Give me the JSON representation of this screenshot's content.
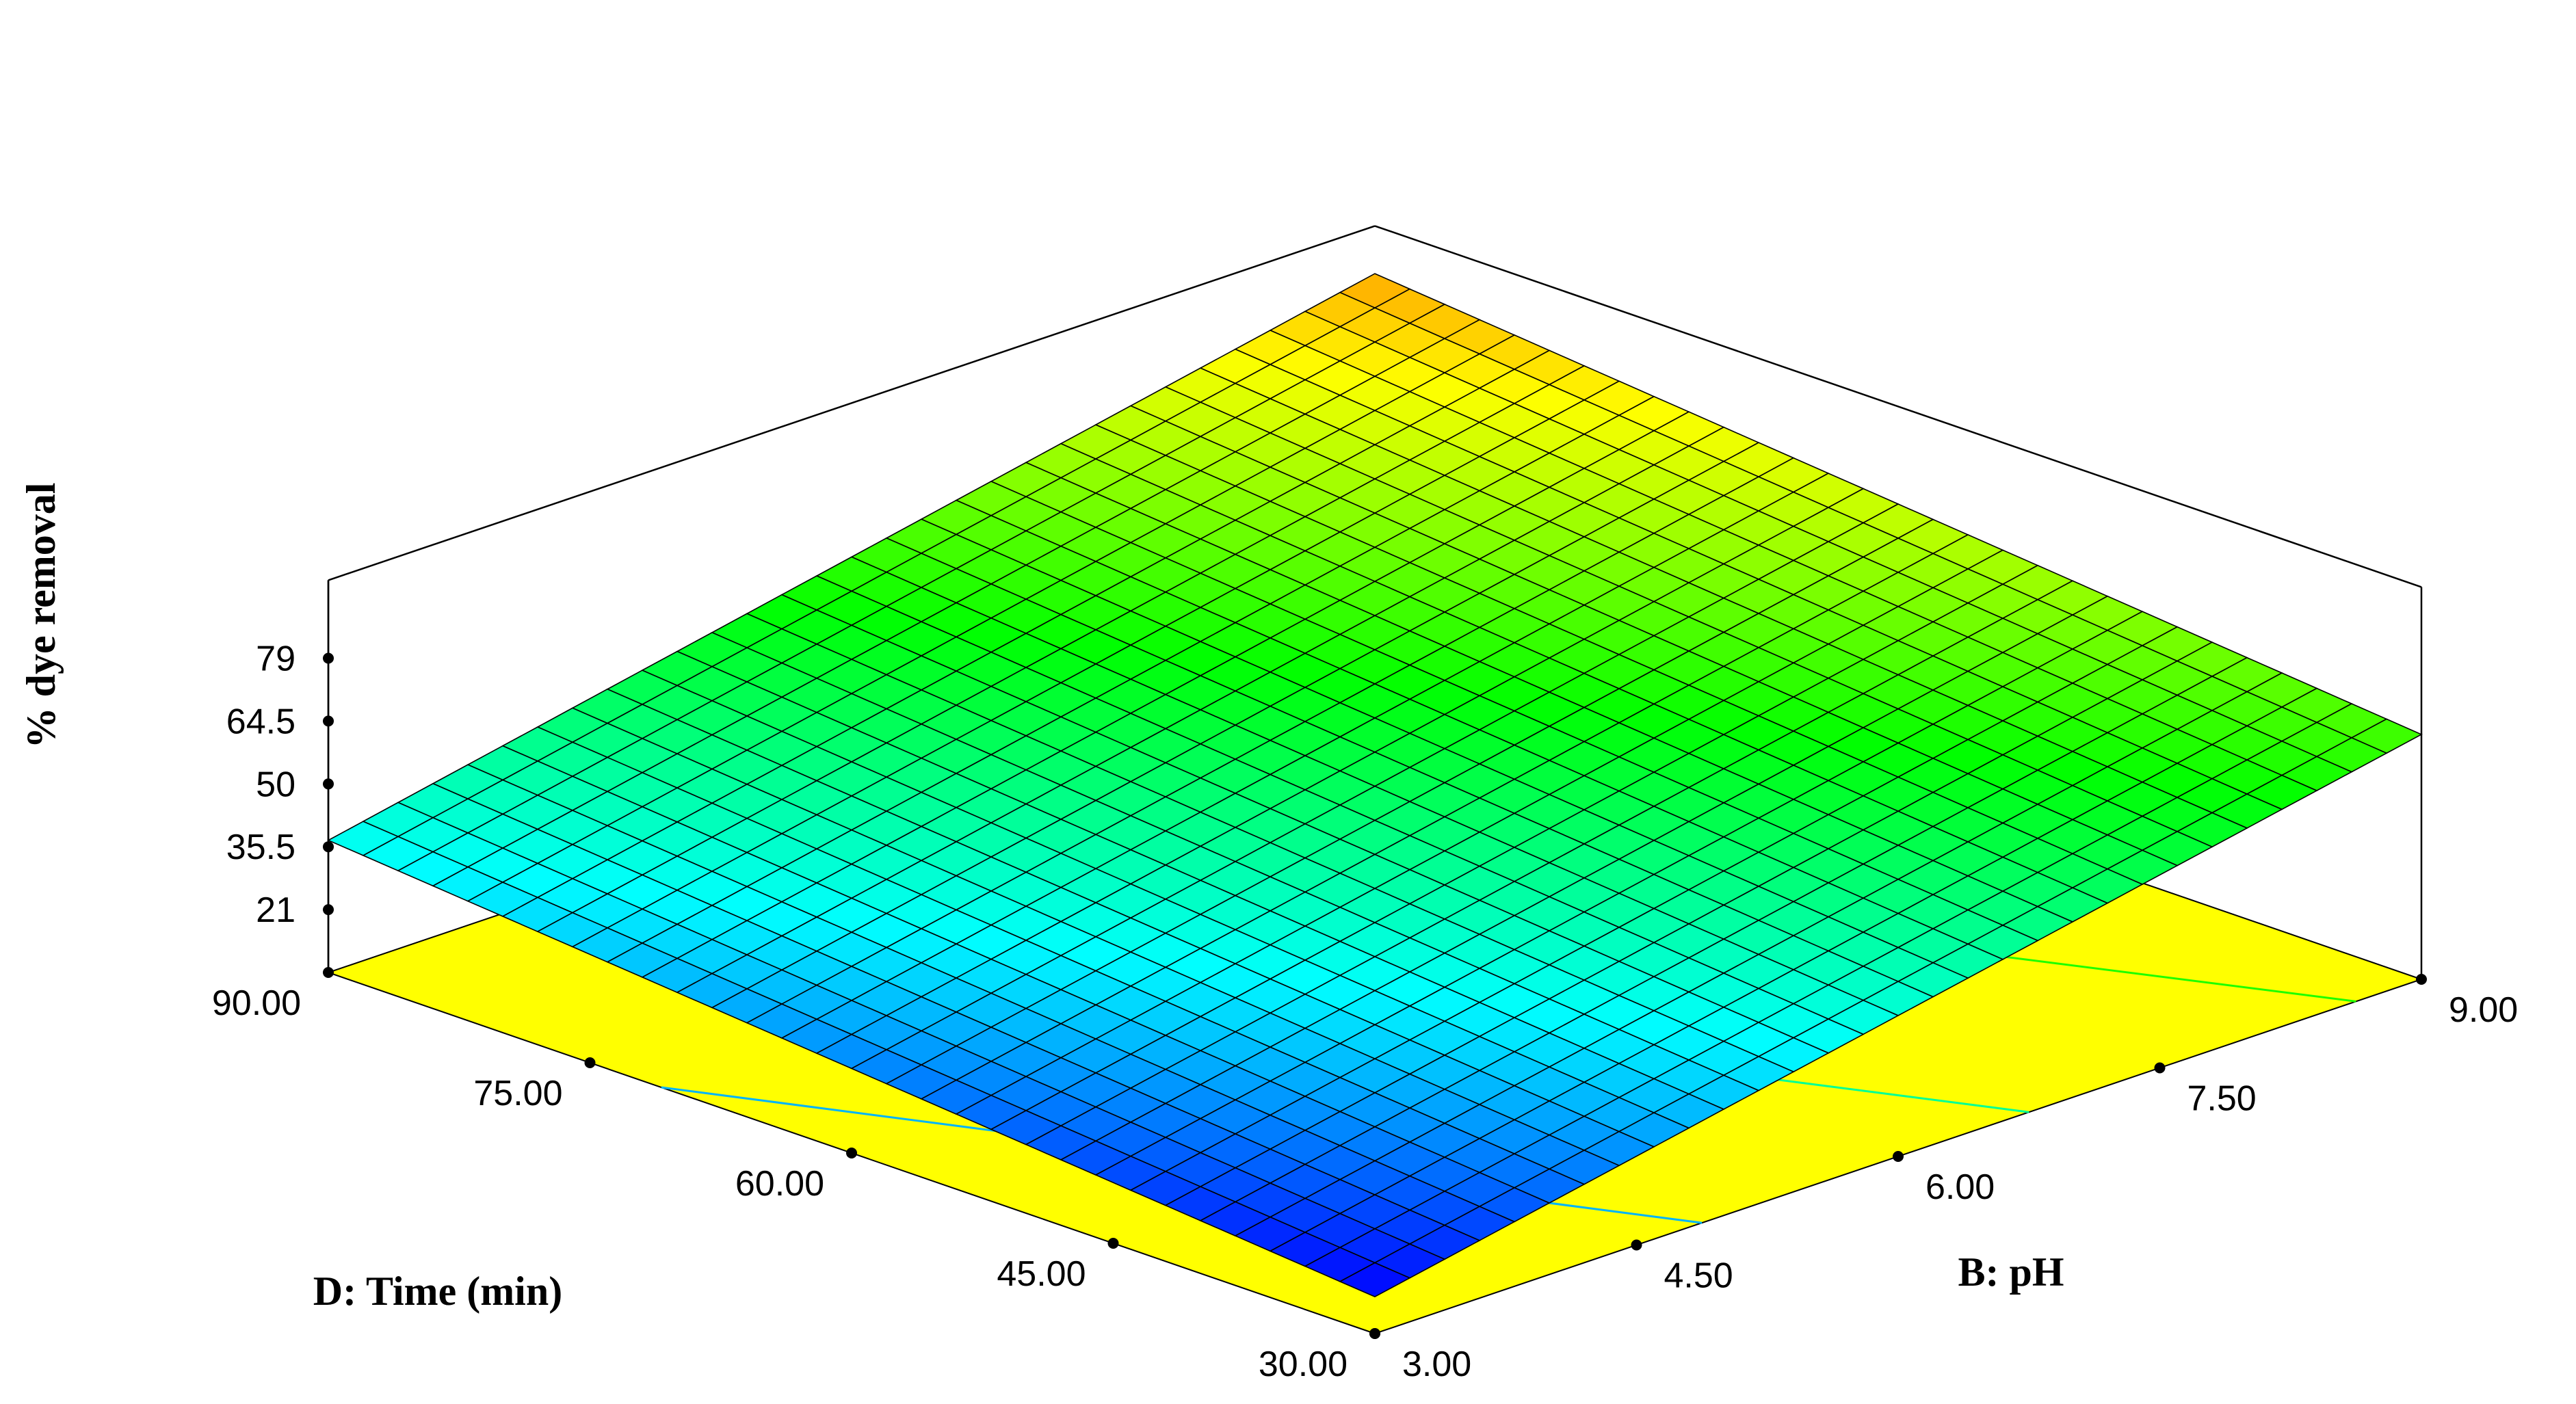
{
  "chart_data": {
    "type": "surface3d",
    "zlabel": "% dye removal",
    "xlabel": "D: Time (min)",
    "ylabel": "B: pH",
    "x_ticks": [
      "30.00",
      "45.00",
      "60.00",
      "75.00",
      "90.00"
    ],
    "y_ticks": [
      "3.00",
      "4.50",
      "6.00",
      "7.50",
      "9.00"
    ],
    "z_ticks": [
      "21",
      "35.5",
      "50",
      "64.5",
      "79"
    ],
    "x_range": [
      30,
      90
    ],
    "y_range": [
      3,
      9
    ],
    "z_range": [
      6.5,
      79
    ],
    "corners": [
      {
        "time": 30,
        "pH": 3,
        "removal": 15
      },
      {
        "time": 90,
        "pH": 3,
        "removal": 37
      },
      {
        "time": 30,
        "pH": 9,
        "removal": 63
      },
      {
        "time": 90,
        "pH": 9,
        "removal": 86
      }
    ],
    "colormap": [
      "#0000ff",
      "#00ffff",
      "#00ff00",
      "#ffff00",
      "#ff0000"
    ],
    "floor_color": "#ffff00",
    "grid_divisions": 30
  }
}
